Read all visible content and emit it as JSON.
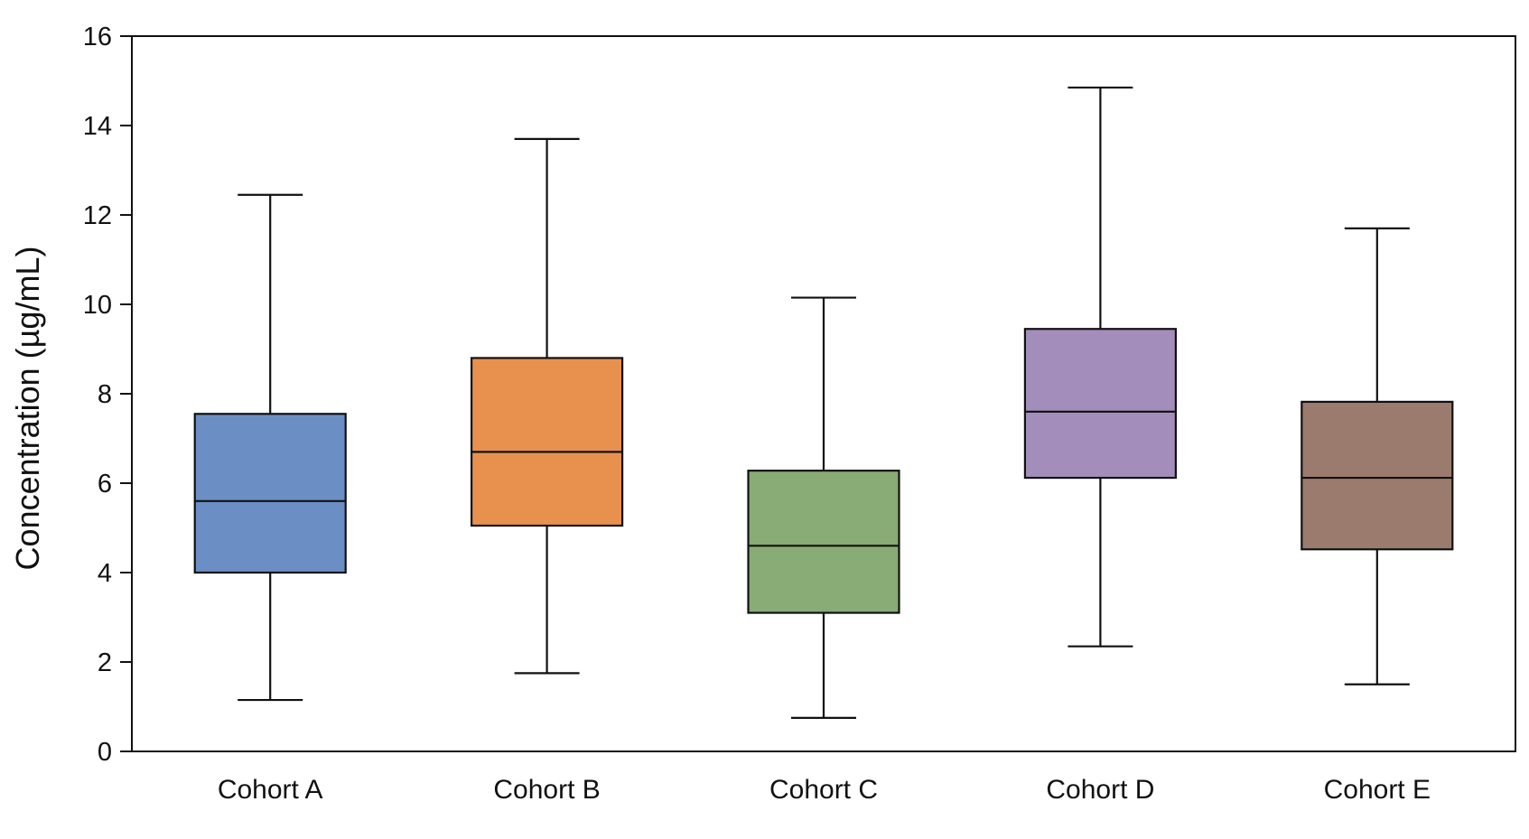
{
  "chart_data": {
    "type": "box",
    "title": "",
    "xlabel": "",
    "ylabel": "Concentration (µg/mL)",
    "ylim": [
      0,
      16
    ],
    "yticks": [
      0,
      2,
      4,
      6,
      8,
      10,
      12,
      14,
      16
    ],
    "grid": false,
    "legend": "none",
    "categories": [
      "Cohort A",
      "Cohort B",
      "Cohort C",
      "Cohort D",
      "Cohort E"
    ],
    "boxes": [
      {
        "category": "Cohort A",
        "min": 1.15,
        "q1": 4.0,
        "median": 5.6,
        "q3": 7.55,
        "max": 12.45,
        "color": "#6b8fc4"
      },
      {
        "category": "Cohort B",
        "min": 1.75,
        "q1": 5.05,
        "median": 6.7,
        "q3": 8.8,
        "max": 13.7,
        "color": "#e8914f"
      },
      {
        "category": "Cohort C",
        "min": 0.75,
        "q1": 3.1,
        "median": 4.6,
        "q3": 6.28,
        "max": 10.15,
        "color": "#89ab76"
      },
      {
        "category": "Cohort D",
        "min": 2.35,
        "q1": 6.12,
        "median": 7.6,
        "q3": 9.45,
        "max": 14.85,
        "color": "#a38dbb"
      },
      {
        "category": "Cohort E",
        "min": 1.5,
        "q1": 4.52,
        "median": 6.12,
        "q3": 7.82,
        "max": 11.7,
        "color": "#9b7b6e"
      }
    ]
  }
}
